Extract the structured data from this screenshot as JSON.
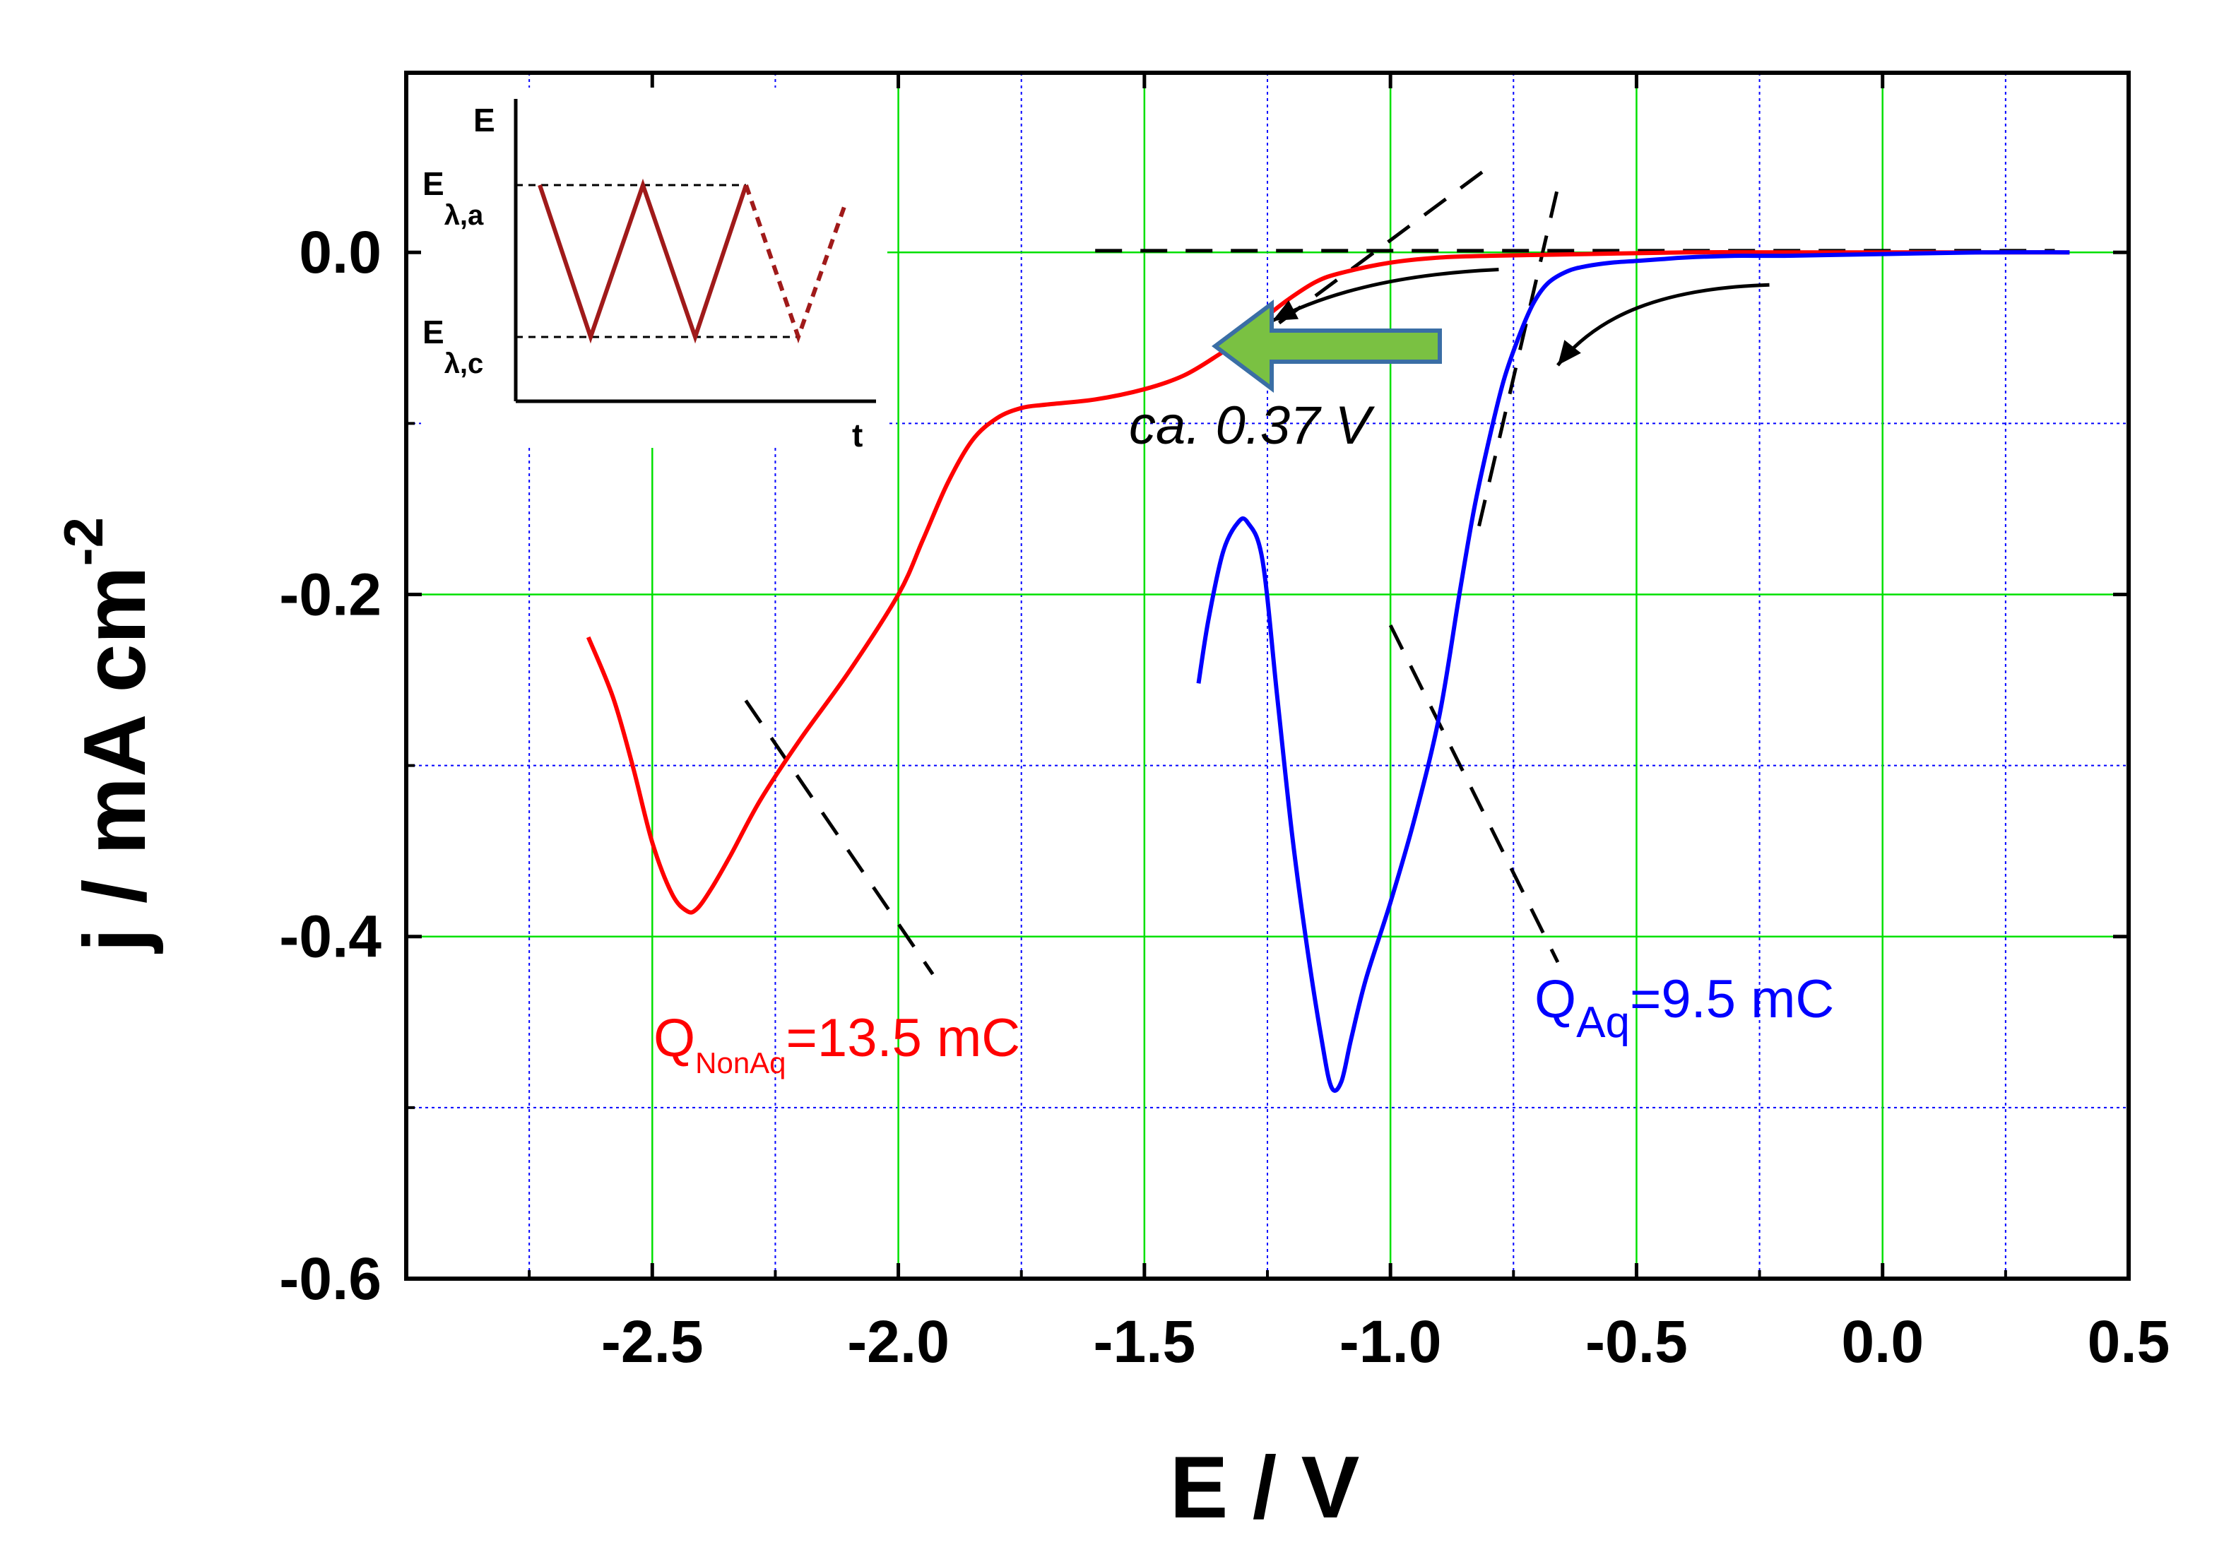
{
  "chart_data": {
    "type": "line",
    "title": "",
    "xlabel": "E / V",
    "ylabel_main": "j / mA cm",
    "ylabel_sup": "-2",
    "xlim": [
      -3.0,
      0.5
    ],
    "ylim": [
      -0.6,
      0.105
    ],
    "x_ticks": [
      -2.5,
      -2.0,
      -1.5,
      -1.0,
      -0.5,
      0.0,
      0.5
    ],
    "x_tick_labels": [
      "-2.5",
      "-2.0",
      "-1.5",
      "-1.0",
      "-0.5",
      "0.0",
      "0.5"
    ],
    "y_ticks": [
      0.0,
      -0.2,
      -0.4,
      -0.6
    ],
    "y_tick_labels": [
      "0.0",
      "-0.2",
      "-0.4",
      "-0.6"
    ],
    "grid": true,
    "series": [
      {
        "name": "NonAq",
        "color": "#ff0000",
        "x": [
          -2.63,
          -2.58,
          -2.54,
          -2.5,
          -2.46,
          -2.43,
          -2.41,
          -2.38,
          -2.34,
          -2.28,
          -2.2,
          -2.1,
          -2.0,
          -1.95,
          -1.9,
          -1.85,
          -1.8,
          -1.75,
          -1.7,
          -1.6,
          -1.5,
          -1.42,
          -1.35,
          -1.3,
          -1.25,
          -1.2,
          -1.15,
          -1.1,
          -1.0,
          -0.9,
          -0.8,
          -0.6,
          -0.4,
          -0.2,
          0.0,
          0.2,
          0.38
        ],
        "y": [
          -0.225,
          -0.26,
          -0.3,
          -0.345,
          -0.375,
          -0.385,
          -0.384,
          -0.372,
          -0.352,
          -0.32,
          -0.285,
          -0.245,
          -0.2,
          -0.168,
          -0.135,
          -0.11,
          -0.097,
          -0.091,
          -0.089,
          -0.086,
          -0.08,
          -0.072,
          -0.06,
          -0.05,
          -0.037,
          -0.026,
          -0.017,
          -0.012,
          -0.006,
          -0.003,
          -0.002,
          -0.001,
          0.0,
          0.0,
          0.0,
          0.0,
          0.0
        ]
      },
      {
        "name": "Aq",
        "color": "#0000ff",
        "x": [
          -1.39,
          -1.37,
          -1.34,
          -1.31,
          -1.29,
          -1.26,
          -1.23,
          -1.2,
          -1.17,
          -1.14,
          -1.12,
          -1.1,
          -1.08,
          -1.05,
          -1.0,
          -0.95,
          -0.9,
          -0.86,
          -0.83,
          -0.8,
          -0.77,
          -0.74,
          -0.71,
          -0.68,
          -0.64,
          -0.6,
          -0.55,
          -0.5,
          -0.45,
          -0.4,
          -0.3,
          -0.2,
          0.0,
          0.2,
          0.38
        ],
        "y": [
          -0.252,
          -0.215,
          -0.175,
          -0.158,
          -0.158,
          -0.18,
          -0.26,
          -0.34,
          -0.405,
          -0.46,
          -0.488,
          -0.485,
          -0.46,
          -0.425,
          -0.38,
          -0.33,
          -0.27,
          -0.2,
          -0.15,
          -0.11,
          -0.075,
          -0.05,
          -0.03,
          -0.018,
          -0.011,
          -0.008,
          -0.006,
          -0.005,
          -0.004,
          -0.003,
          -0.002,
          -0.002,
          -0.001,
          0.0,
          0.0
        ]
      }
    ],
    "tangent_lines": [
      {
        "x": [
          -1.6,
          0.35
        ],
        "y": [
          0.001,
          0.001
        ]
      },
      {
        "x": [
          -1.3,
          -0.79
        ],
        "y": [
          -0.057,
          0.052
        ]
      },
      {
        "x": [
          -0.82,
          -0.66
        ],
        "y": [
          -0.16,
          0.038
        ]
      },
      {
        "x": [
          -2.31,
          -1.93
        ],
        "y": [
          -0.262,
          -0.422
        ]
      },
      {
        "x": [
          -1.0,
          -0.66
        ],
        "y": [
          -0.218,
          -0.415
        ]
      }
    ],
    "scan_arrows": [
      {
        "x": [
          -0.78,
          -1.0,
          -1.14,
          -1.24
        ],
        "y": [
          -0.01,
          -0.013,
          -0.025,
          -0.04
        ]
      },
      {
        "x": [
          -0.23,
          -0.45,
          -0.58,
          -0.66
        ],
        "y": [
          -0.019,
          -0.021,
          -0.037,
          -0.066
        ]
      }
    ],
    "annotations": {
      "shift_text": "ca. 0.37 V",
      "q_nonaq_main": "Q",
      "q_nonaq_sub": "NonAq",
      "q_nonaq_value": "=13.5 mC",
      "q_aq_main": "Q",
      "q_aq_sub": "Aq",
      "q_aq_value": "=9.5 mC"
    },
    "inset": {
      "y_axis_label": "E",
      "x_axis_label": "t",
      "upper_level_main": "E",
      "upper_level_sub": "λ,a",
      "lower_level_main": "E",
      "lower_level_sub": "λ,c",
      "waveform_color": "#a01a1a"
    },
    "colors": {
      "grid_major": "#00e000",
      "grid_minor": "#0000ff",
      "arrow_fill": "#7ac142",
      "arrow_stroke": "#3a6ea5"
    }
  }
}
